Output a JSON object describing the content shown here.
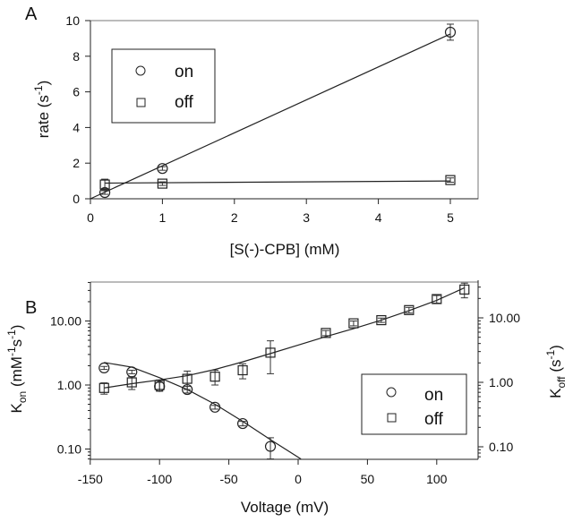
{
  "chart_data": [
    {
      "panel_label": "A",
      "type": "scatter",
      "xlabel": "[S(-)-CPB] (mM)",
      "ylabel": "rate (s",
      "ylabel_sup": "-1",
      "ylabel_end": ")",
      "xlim": [
        0,
        5.5
      ],
      "ylim": [
        0,
        10
      ],
      "xticks": [
        "0",
        "1",
        "2",
        "3",
        "4",
        "5"
      ],
      "yticks": [
        "0",
        "2",
        "4",
        "6",
        "8",
        "10"
      ],
      "legend": "top-left",
      "series": [
        {
          "name": "on",
          "marker": "circle",
          "x": [
            0.2,
            1,
            5
          ],
          "y": [
            0.35,
            1.7,
            9.35
          ],
          "err": [
            0.1,
            0.1,
            0.45
          ],
          "fit": [
            [
              0,
              0
            ],
            [
              5,
              9.25
            ]
          ]
        },
        {
          "name": "off",
          "marker": "square",
          "x": [
            0.2,
            1,
            5
          ],
          "y": [
            0.8,
            0.85,
            1.05
          ],
          "err": [
            0.3,
            0.1,
            0.12
          ],
          "fit": [
            [
              0.2,
              0.88
            ],
            [
              5,
              1.0
            ]
          ]
        }
      ]
    },
    {
      "panel_label": "B",
      "type": "scatter",
      "xlabel": "Voltage (mV)",
      "ylabel_left": "K",
      "ylabel_left_sub": "on",
      "ylabel_left_unit": " (mM",
      "ylabel_left_sup1": "-1",
      "ylabel_left_mid": "s",
      "ylabel_left_sup2": "-1",
      "ylabel_left_end": ")",
      "ylabel_right": "K",
      "ylabel_right_sub": "off",
      "ylabel_right_unit": " (s",
      "ylabel_right_sup": "-1",
      "ylabel_right_end": ")",
      "yscale": "log",
      "xlim": [
        -150,
        130
      ],
      "ylim_left": [
        0.07,
        41
      ],
      "ylim_right": [
        0.065,
        36
      ],
      "xticks": [
        "-150",
        "-100",
        "-50",
        "0",
        "50",
        "100"
      ],
      "yticks_left": [
        "0.10",
        "1.00",
        "10.00"
      ],
      "yticks_right": [
        "0.10",
        "1.00",
        "10.00"
      ],
      "legend": "bottom-right",
      "series": [
        {
          "name": "on",
          "marker": "circle",
          "x": [
            -140,
            -120,
            -100,
            -80,
            -60,
            -40,
            -20
          ],
          "y": [
            1.85,
            1.6,
            0.95,
            0.85,
            0.45,
            0.25,
            0.11
          ],
          "err": [
            0.1,
            0.1,
            0.15,
            0.1,
            0.03,
            0.02,
            0.04
          ],
          "fit": [
            [
              -140,
              2.25
            ],
            [
              -120,
              1.9
            ],
            [
              -100,
              1.3
            ],
            [
              -80,
              0.85
            ],
            [
              -60,
              0.5
            ],
            [
              -40,
              0.27
            ],
            [
              -20,
              0.14
            ],
            [
              2,
              0.07
            ]
          ]
        },
        {
          "name": "off",
          "marker": "square",
          "x": [
            -140,
            -120,
            -100,
            -80,
            -60,
            -40,
            -20,
            20,
            40,
            60,
            80,
            100,
            120
          ],
          "y": [
            0.9,
            1.1,
            1.0,
            1.25,
            1.35,
            1.7,
            3.2,
            6.5,
            9.2,
            10.3,
            14.8,
            22,
            31
          ],
          "err": [
            0.18,
            0.25,
            0.2,
            0.4,
            0.35,
            0.45,
            1.7,
            0.6,
            0.8,
            0.8,
            1.5,
            3,
            8
          ],
          "fit": [
            [
              -140,
              0.9
            ],
            [
              -120,
              1.05
            ],
            [
              -100,
              1.2
            ],
            [
              -80,
              1.4
            ],
            [
              -60,
              1.75
            ],
            [
              -40,
              2.3
            ],
            [
              -20,
              3.1
            ],
            [
              0,
              4.2
            ],
            [
              20,
              5.7
            ],
            [
              40,
              7.6
            ],
            [
              60,
              10.3
            ],
            [
              80,
              14.5
            ],
            [
              100,
              21
            ],
            [
              120,
              33
            ]
          ]
        }
      ]
    }
  ]
}
